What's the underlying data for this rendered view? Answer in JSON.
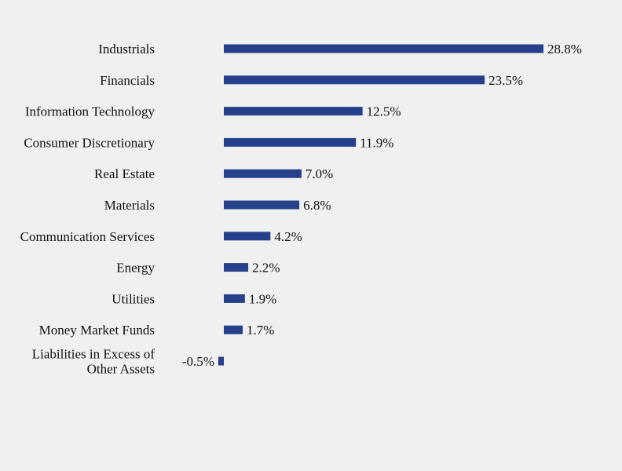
{
  "chart_data": {
    "type": "bar",
    "orientation": "horizontal",
    "categories": [
      "Industrials",
      "Financials",
      "Information Technology",
      "Consumer Discretionary",
      "Real Estate",
      "Materials",
      "Communication Services",
      "Energy",
      "Utilities",
      "Money Market Funds",
      "Liabilities in Excess of Other Assets"
    ],
    "category_lines": [
      [
        "Industrials"
      ],
      [
        "Financials"
      ],
      [
        "Information Technology"
      ],
      [
        "Consumer Discretionary"
      ],
      [
        "Real Estate"
      ],
      [
        "Materials"
      ],
      [
        "Communication Services"
      ],
      [
        "Energy"
      ],
      [
        "Utilities"
      ],
      [
        "Money Market Funds"
      ],
      [
        "Liabilities in Excess of",
        "Other Assets"
      ]
    ],
    "values": [
      28.8,
      23.5,
      12.5,
      11.9,
      7.0,
      6.8,
      4.2,
      2.2,
      1.9,
      1.7,
      -0.5
    ],
    "data_labels": [
      "28.8%",
      "23.5%",
      "12.5%",
      "11.9%",
      "7.0%",
      "6.8%",
      "4.2%",
      "2.2%",
      "1.9%",
      "1.7%",
      "-0.5%"
    ],
    "title": "",
    "xlabel": "",
    "ylabel": "",
    "grid": false,
    "legend": "none",
    "bar_color": "#26408b",
    "background": "#f0f0f0"
  }
}
